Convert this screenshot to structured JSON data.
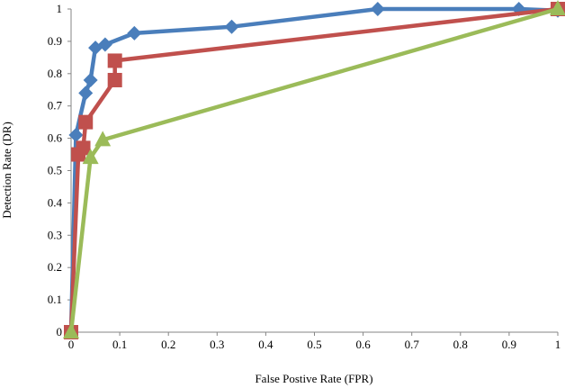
{
  "chart_data": {
    "type": "line",
    "title": "",
    "xlabel": "False Postive Rate (FPR)",
    "ylabel": "Detection Rate (DR)",
    "xlim": [
      0,
      1
    ],
    "ylim": [
      0,
      1
    ],
    "x_ticks": [
      "0",
      "0.1",
      "0.2",
      "0.3",
      "0.4",
      "0.5",
      "0.6",
      "0.7",
      "0.8",
      "0.9",
      "1"
    ],
    "y_ticks": [
      "0",
      "0.1",
      "0.2",
      "0.3",
      "0.4",
      "0.5",
      "0.6",
      "0.7",
      "0.8",
      "0.9",
      "1"
    ],
    "grid": false,
    "legend": "none",
    "series": [
      {
        "color": "#4a7ebb",
        "marker": "diamond",
        "points": [
          [
            0,
            0
          ],
          [
            0.01,
            0.61
          ],
          [
            0.03,
            0.74
          ],
          [
            0.04,
            0.78
          ],
          [
            0.05,
            0.88
          ],
          [
            0.07,
            0.89
          ],
          [
            0.13,
            0.925
          ],
          [
            0.33,
            0.945
          ],
          [
            0.63,
            1.0
          ],
          [
            0.92,
            1.0
          ],
          [
            1.0,
            0.995
          ]
        ]
      },
      {
        "color": "#c0504d",
        "marker": "square",
        "points": [
          [
            0,
            0
          ],
          [
            0.015,
            0.55
          ],
          [
            0.025,
            0.57
          ],
          [
            0.03,
            0.65
          ],
          [
            0.09,
            0.78
          ],
          [
            0.09,
            0.84
          ],
          [
            1.0,
            1.0
          ]
        ]
      },
      {
        "color": "#9bbb59",
        "marker": "triangle",
        "points": [
          [
            0,
            0
          ],
          [
            0.04,
            0.54
          ],
          [
            0.065,
            0.595
          ],
          [
            1.0,
            1.0
          ]
        ]
      }
    ]
  }
}
